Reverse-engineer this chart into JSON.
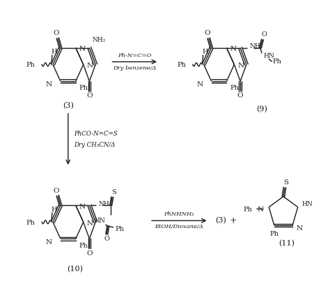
{
  "bg_color": "#ffffff",
  "text_color": "#1a1a1a",
  "fig_width": 4.74,
  "fig_height": 4.3,
  "dpi": 100,
  "reactions": {
    "arrow1_label_top": "Ph-N=C=O",
    "arrow1_label_bot": "Dry benzene/Δ",
    "arrow2_label_top": "PhCO-N=C=S",
    "arrow2_label_bot": "Dry CH₃CN/Δ",
    "arrow3_label_top": "PhNHNH₂",
    "arrow3_label_bot": "EtOH/Dioxane/Δ"
  }
}
